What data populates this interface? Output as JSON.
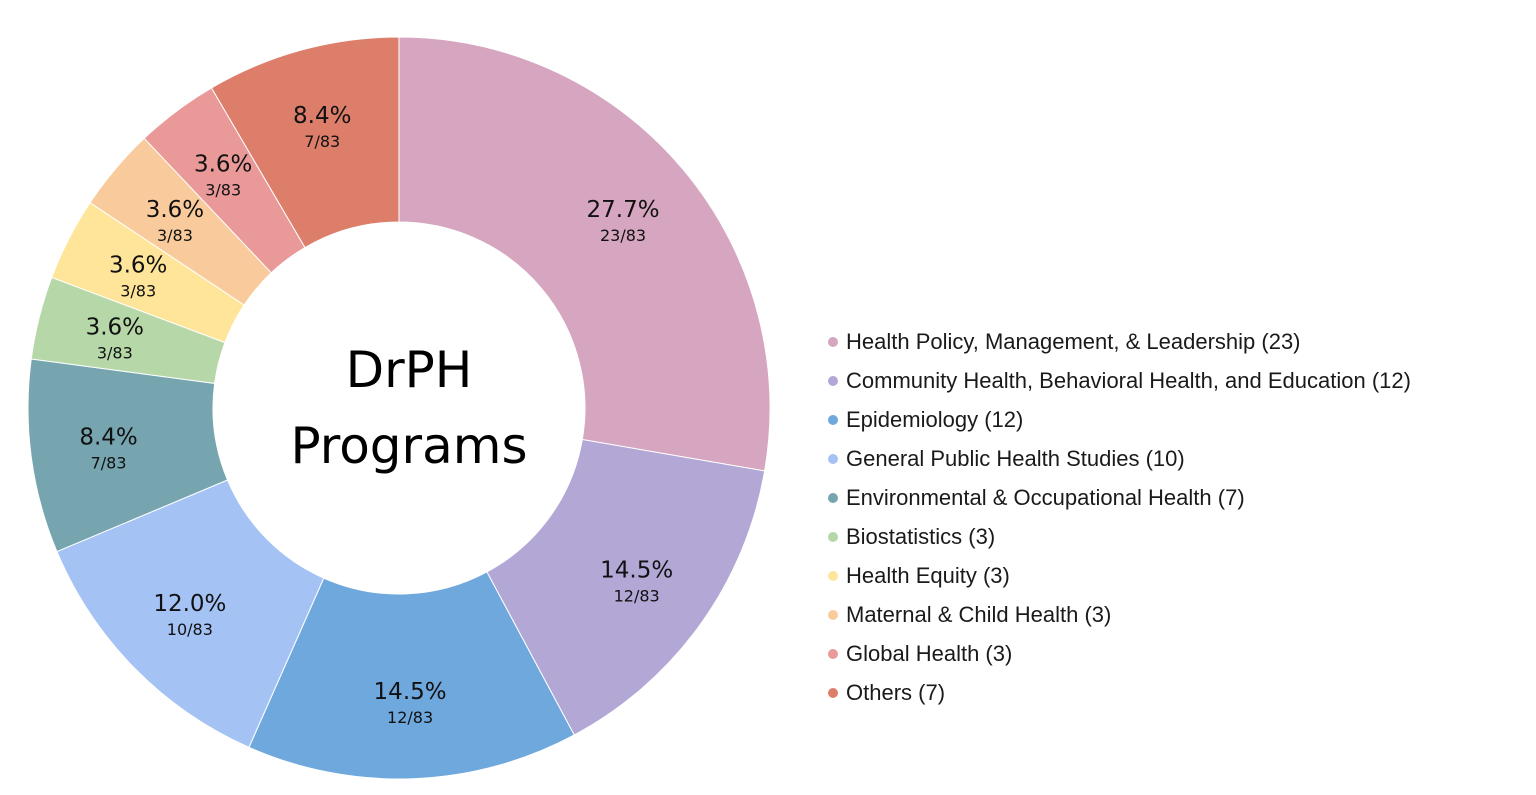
{
  "chart_data": {
    "type": "pie",
    "variant": "donut",
    "center_title_lines": [
      "DrPH",
      "Programs"
    ],
    "total": 83,
    "legend_position": "right",
    "slices": [
      {
        "label": "Health Policy, Management, & Leadership (23)",
        "value": 23,
        "percent_label": "27.7%",
        "fraction_label": "23/83",
        "color": "#D6A5BF"
      },
      {
        "label": "Community Health, Behavioral Health, and Education (12)",
        "value": 12,
        "percent_label": "14.5%",
        "fraction_label": "12/83",
        "color": "#B3A7D6"
      },
      {
        "label": "Epidemiology (12)",
        "value": 12,
        "percent_label": "14.5%",
        "fraction_label": "12/83",
        "color": "#6FA8DC"
      },
      {
        "label": "General Public Health Studies (10)",
        "value": 10,
        "percent_label": "12.0%",
        "fraction_label": "10/83",
        "color": "#A4C2F4"
      },
      {
        "label": "Environmental & Occupational Health (7)",
        "value": 7,
        "percent_label": "8.4%",
        "fraction_label": "7/83",
        "color": "#76A5AF"
      },
      {
        "label": "Biostatistics (3)",
        "value": 3,
        "percent_label": "3.6%",
        "fraction_label": "3/83",
        "color": "#B6D7A8"
      },
      {
        "label": "Health Equity (3)",
        "value": 3,
        "percent_label": "3.6%",
        "fraction_label": "3/83",
        "color": "#FFE599"
      },
      {
        "label": "Maternal & Child Health (3)",
        "value": 3,
        "percent_label": "3.6%",
        "fraction_label": "3/83",
        "color": "#F9CB9C"
      },
      {
        "label": "Global Health (3)",
        "value": 3,
        "percent_label": "3.6%",
        "fraction_label": "3/83",
        "color": "#EA9999"
      },
      {
        "label": "Others (7)",
        "value": 7,
        "percent_label": "8.4%",
        "fraction_label": "7/83",
        "color": "#DD7E6B"
      }
    ]
  }
}
